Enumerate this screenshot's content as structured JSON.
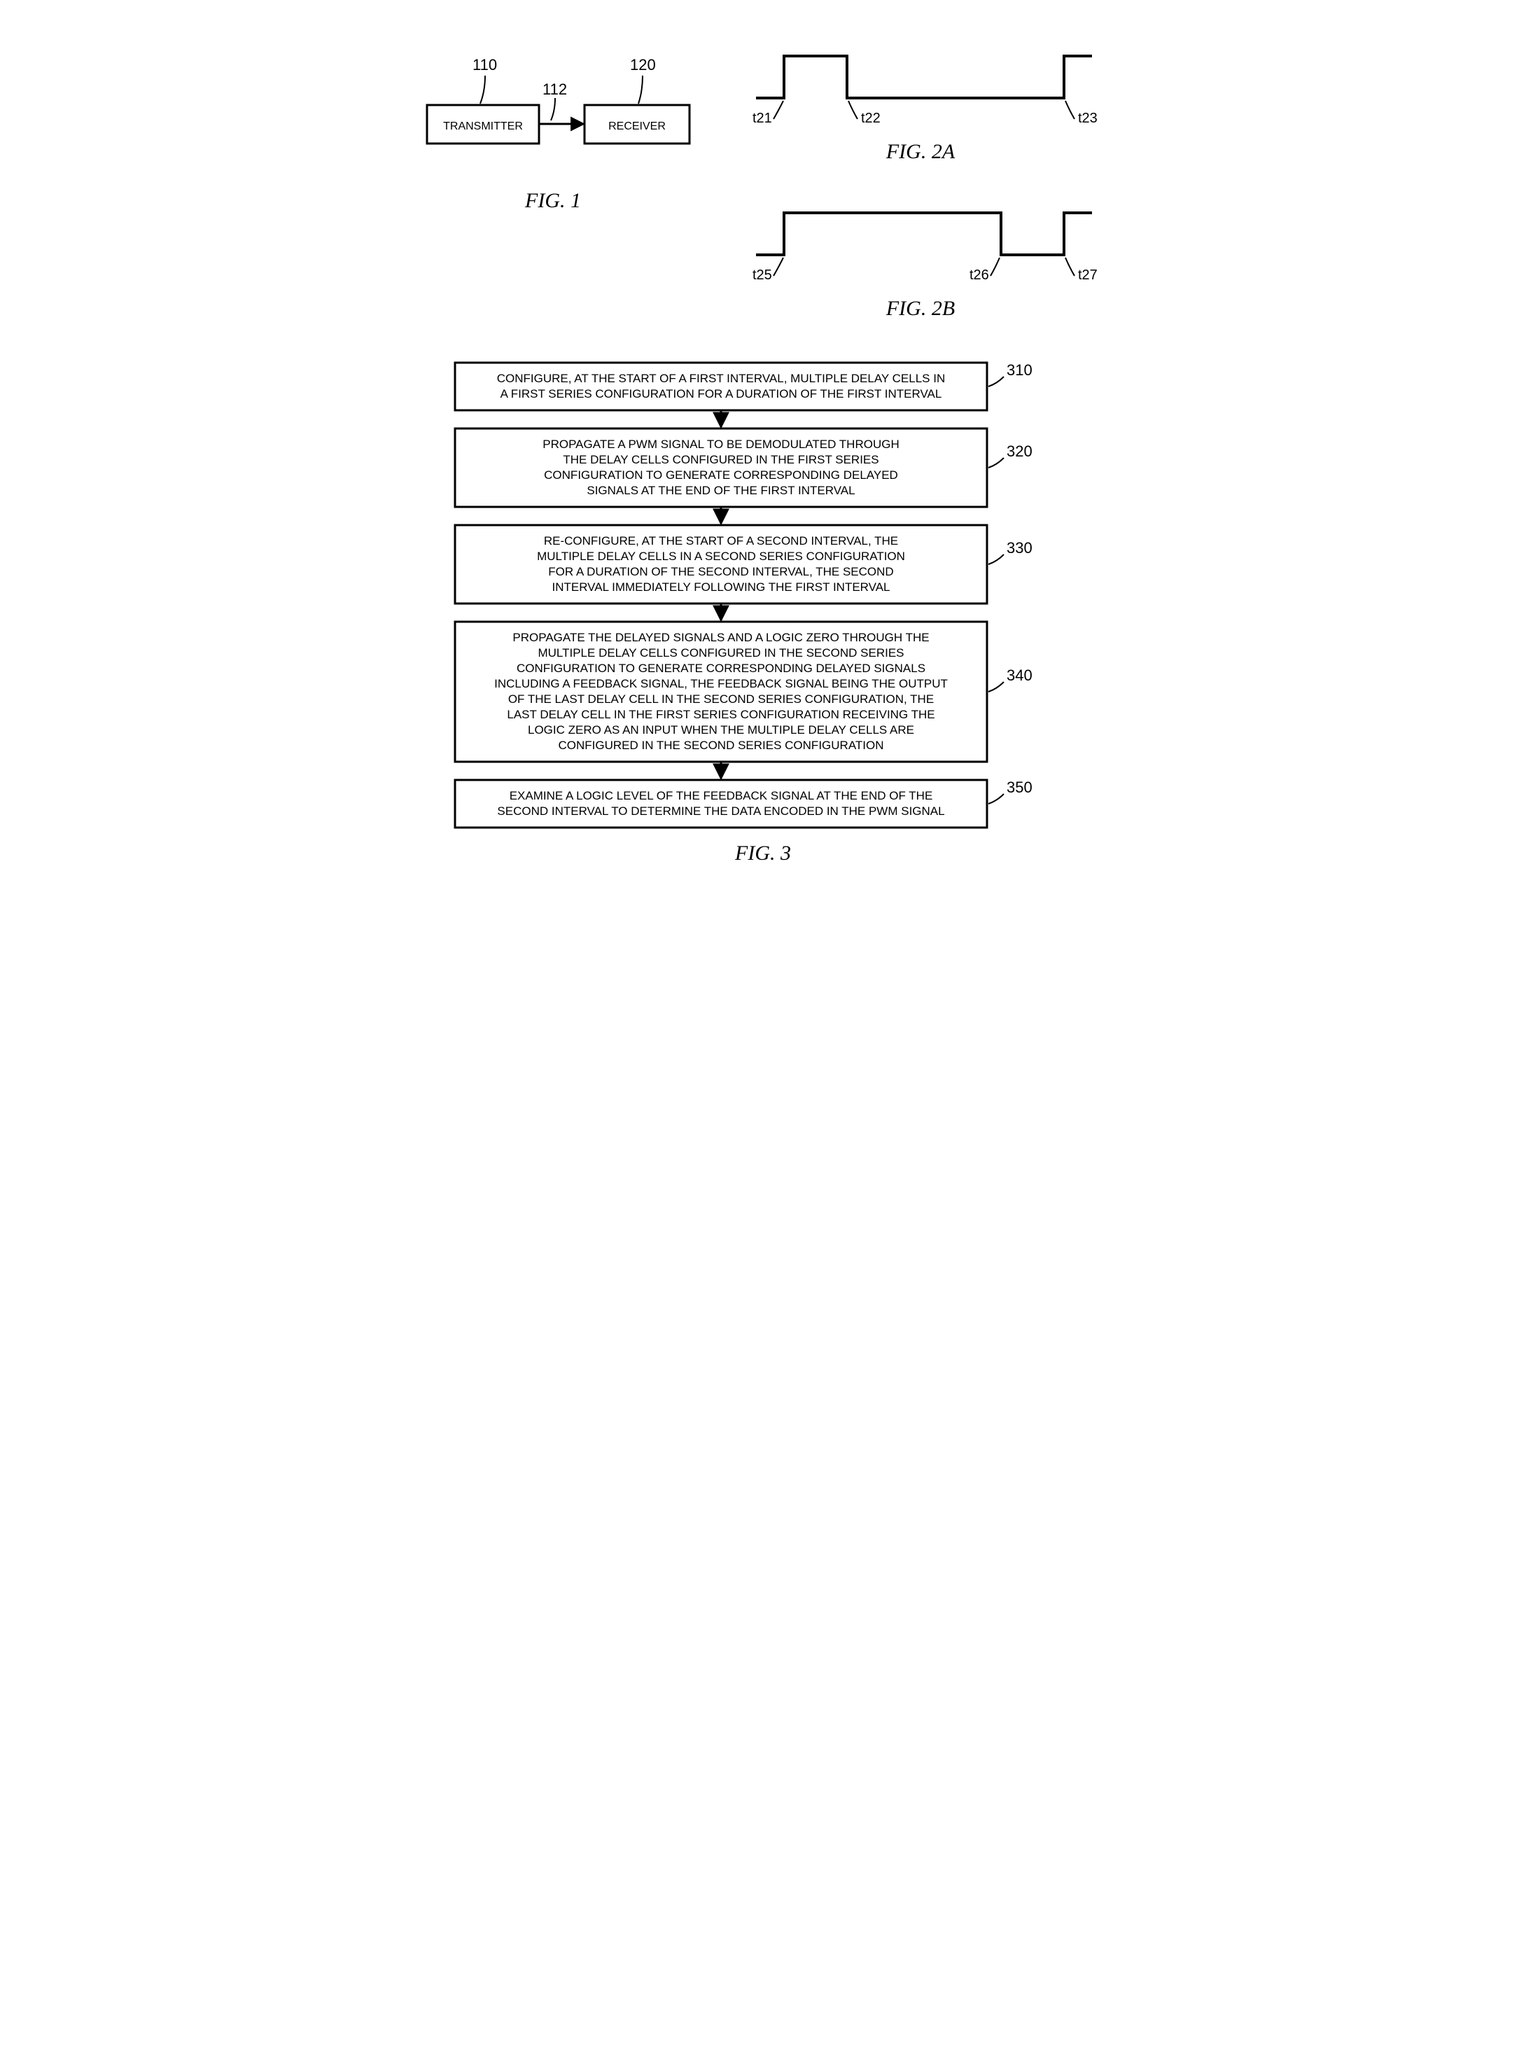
{
  "fig1": {
    "label": "FIG. 1",
    "transmitter": {
      "label": "TRANSMITTER",
      "ref": "110",
      "stroke": "#000",
      "fill": "#fff"
    },
    "receiver": {
      "label": "RECEIVER",
      "ref": "120",
      "stroke": "#000",
      "fill": "#fff"
    },
    "link_ref": "112",
    "stroke_width": 3
  },
  "fig2a": {
    "label": "FIG. 2A",
    "ticks": [
      "t21",
      "t22",
      "t23"
    ],
    "stroke": "#000",
    "stroke_width": 4
  },
  "fig2b": {
    "label": "FIG. 2B",
    "ticks": [
      "t25",
      "t26",
      "t27"
    ],
    "stroke": "#000",
    "stroke_width": 4
  },
  "fig3": {
    "label": "FIG. 3",
    "box_stroke": "#000",
    "box_fill": "#ffffff",
    "stroke_width": 3,
    "arrow_len": 20,
    "steps": [
      {
        "ref": "310",
        "lines": [
          "CONFIGURE, AT THE START OF A FIRST INTERVAL, MULTIPLE DELAY CELLS IN",
          "A FIRST SERIES CONFIGURATION FOR A DURATION OF THE FIRST INTERVAL"
        ]
      },
      {
        "ref": "320",
        "lines": [
          "PROPAGATE A PWM SIGNAL TO BE DEMODULATED THROUGH",
          "THE DELAY CELLS CONFIGURED IN THE FIRST SERIES",
          "CONFIGURATION TO GENERATE CORRESPONDING DELAYED",
          "SIGNALS AT THE END OF THE FIRST INTERVAL"
        ]
      },
      {
        "ref": "330",
        "lines": [
          "RE-CONFIGURE, AT THE START OF A SECOND INTERVAL, THE",
          "MULTIPLE DELAY CELLS IN A SECOND SERIES CONFIGURATION",
          "FOR A DURATION OF THE SECOND INTERVAL, THE SECOND",
          "INTERVAL IMMEDIATELY FOLLOWING THE FIRST INTERVAL"
        ]
      },
      {
        "ref": "340",
        "lines": [
          "PROPAGATE THE DELAYED SIGNALS AND A LOGIC ZERO THROUGH THE",
          "MULTIPLE DELAY CELLS CONFIGURED IN THE SECOND SERIES",
          "CONFIGURATION TO GENERATE CORRESPONDING DELAYED SIGNALS",
          "INCLUDING A FEEDBACK SIGNAL, THE FEEDBACK SIGNAL BEING THE OUTPUT",
          "OF THE LAST DELAY CELL IN THE SECOND SERIES CONFIGURATION, THE",
          "LAST DELAY CELL IN THE FIRST SERIES CONFIGURATION RECEIVING THE",
          "LOGIC ZERO AS AN INPUT WHEN THE MULTIPLE DELAY CELLS ARE",
          "CONFIGURED IN THE SECOND SERIES CONFIGURATION"
        ]
      },
      {
        "ref": "350",
        "lines": [
          "EXAMINE A LOGIC LEVEL OF THE FEEDBACK SIGNAL AT THE END OF THE",
          "SECOND INTERVAL TO DETERMINE THE DATA ENCODED IN THE PWM SIGNAL"
        ]
      }
    ]
  }
}
